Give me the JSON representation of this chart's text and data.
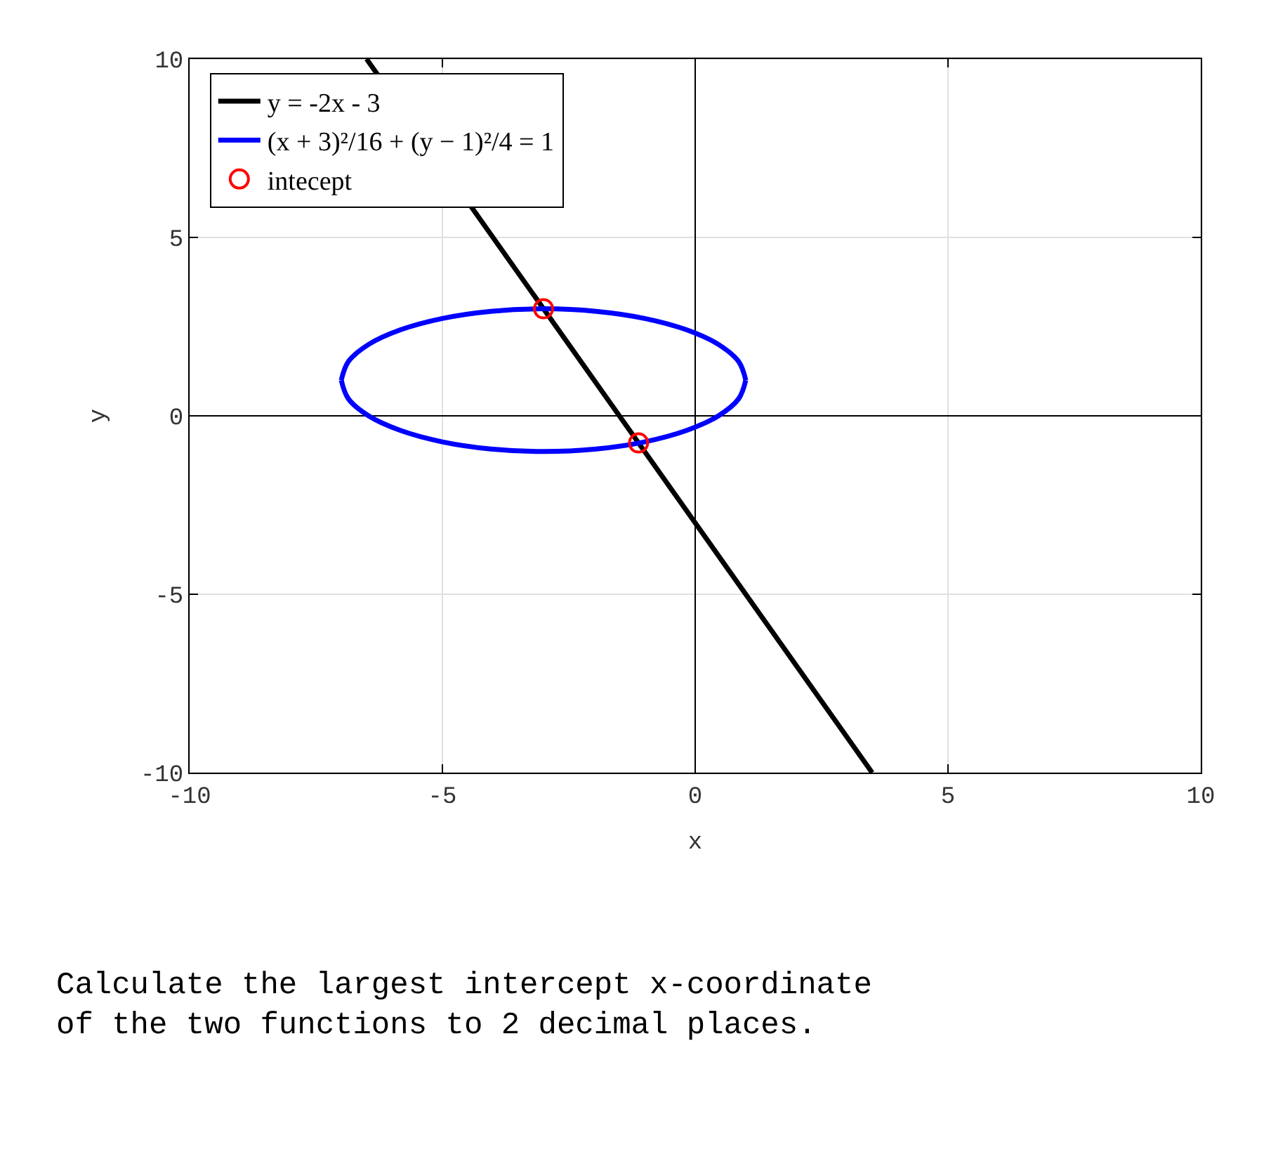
{
  "chart_data": {
    "type": "line",
    "xlabel": "x",
    "ylabel": "y",
    "xlim": [
      -10,
      10
    ],
    "ylim": [
      -10,
      10
    ],
    "xticks": [
      -10,
      -5,
      0,
      5,
      10
    ],
    "yticks": [
      -10,
      -5,
      0,
      5,
      10
    ],
    "grid": true,
    "legend": "top left",
    "series": [
      {
        "name": "y = -2x - 3",
        "color": "#000000",
        "x": [
          -6.5,
          3.5
        ],
        "values": [
          10,
          -10
        ]
      },
      {
        "name": "(x + 3)²/16 + (y − 1)²/4 = 1",
        "color": "#0000ff",
        "x": [
          -7,
          -6.86,
          -6.46,
          -5.83,
          -5,
          -4.04,
          -3,
          -1.96,
          -1,
          -0.17,
          0.46,
          0.86,
          1,
          null,
          -7,
          -6.86,
          -6.46,
          -5.83,
          -5,
          -4.04,
          -3,
          -1.96,
          -1,
          -0.17,
          0.46,
          0.86,
          1
        ],
        "values": [
          1,
          1.52,
          2,
          2.41,
          2.73,
          2.93,
          3,
          2.93,
          2.73,
          2.41,
          2,
          1.52,
          1,
          null,
          1,
          0.48,
          0,
          -0.41,
          -0.73,
          -0.93,
          -1,
          -0.93,
          -0.73,
          -0.41,
          0,
          0.48,
          1
        ]
      },
      {
        "name": "intecept",
        "type": "scatter",
        "marker": "circle",
        "color": "#ff0000",
        "x": [
          -3,
          -1.12
        ],
        "values": [
          3,
          -0.76
        ]
      }
    ],
    "annotations": [
      "Calculate the largest intercept x-coordinate\nof the two functions to 2 decimal places."
    ]
  }
}
